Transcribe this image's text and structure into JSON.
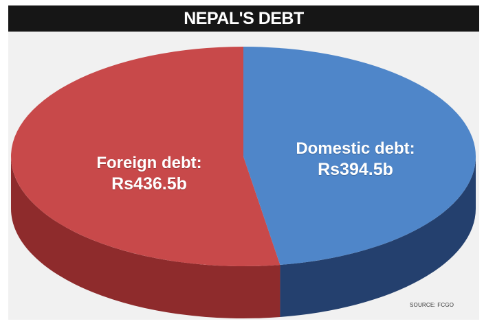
{
  "title": "NEPAL'S DEBT",
  "source": "SOURCE: FCGO",
  "chart_data": {
    "type": "pie",
    "title": "NEPAL'S DEBT",
    "slices": [
      {
        "name": "Foreign debt:",
        "value": 436.5,
        "value_label": "Rs436.5b",
        "color": "#c8494a",
        "side_color": "#8e2b2c"
      },
      {
        "name": "Domestic debt:",
        "value": 394.5,
        "value_label": "Rs394.5b",
        "color": "#4f86c9",
        "side_color": "#24406e"
      }
    ],
    "units": "Rs billion",
    "style": "3d"
  }
}
